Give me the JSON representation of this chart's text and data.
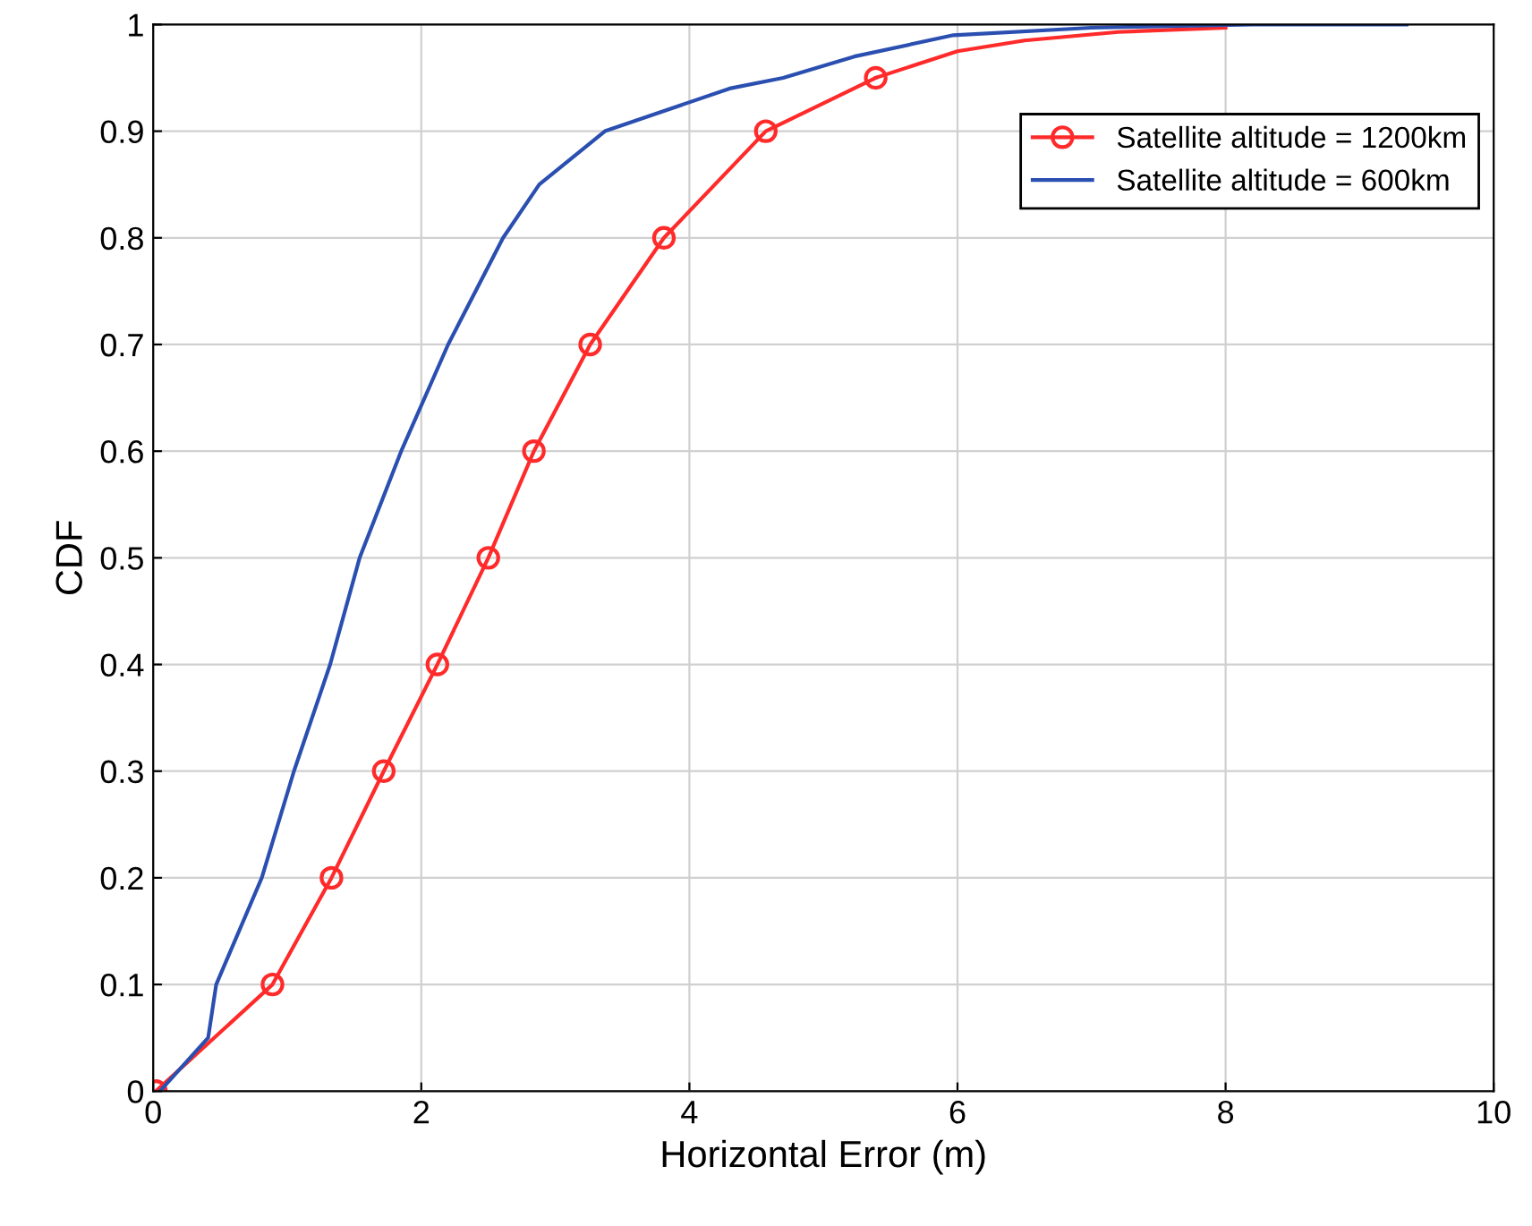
{
  "chart_data": {
    "type": "line",
    "xlabel": "Horizontal Error (m)",
    "ylabel": "CDF",
    "xlim": [
      0,
      10
    ],
    "ylim": [
      0,
      1
    ],
    "xticks": [
      0,
      2,
      4,
      6,
      8,
      10
    ],
    "yticks": [
      0,
      0.1,
      0.2,
      0.3,
      0.4,
      0.5,
      0.6,
      0.7,
      0.8,
      0.9,
      1
    ],
    "grid": true,
    "legend": "top right",
    "series": [
      {
        "name": "Satellite altitude = 1200km",
        "color": "#ff2a2a",
        "marker": "circle",
        "x": [
          0.02,
          0.89,
          1.33,
          1.72,
          2.12,
          2.5,
          2.84,
          3.26,
          3.81,
          4.57,
          5.39
        ],
        "values": [
          0,
          0.1,
          0.2,
          0.3,
          0.4,
          0.5,
          0.6,
          0.7,
          0.8,
          0.9,
          0.95
        ]
      },
      {
        "color": "#ff2a2a",
        "marker": "none",
        "x": [
          5.39,
          6.0,
          6.5,
          7.2,
          8.0
        ],
        "values": [
          0.95,
          0.975,
          0.985,
          0.993,
          0.997
        ]
      },
      {
        "name": "Satellite altitude = 600km",
        "color": "#2a4fb0",
        "marker": "none",
        "x": [
          0.05,
          0.41,
          0.47,
          0.81,
          1.05,
          1.32,
          1.54,
          1.85,
          2.2,
          2.61,
          2.88,
          3.37,
          4.3,
          4.7,
          5.23,
          5.97,
          7.0,
          8.2,
          9.35
        ],
        "values": [
          0,
          0.05,
          0.1,
          0.2,
          0.3,
          0.4,
          0.5,
          0.6,
          0.7,
          0.8,
          0.85,
          0.9,
          0.94,
          0.95,
          0.97,
          0.99,
          0.997,
          1,
          1
        ]
      }
    ]
  }
}
